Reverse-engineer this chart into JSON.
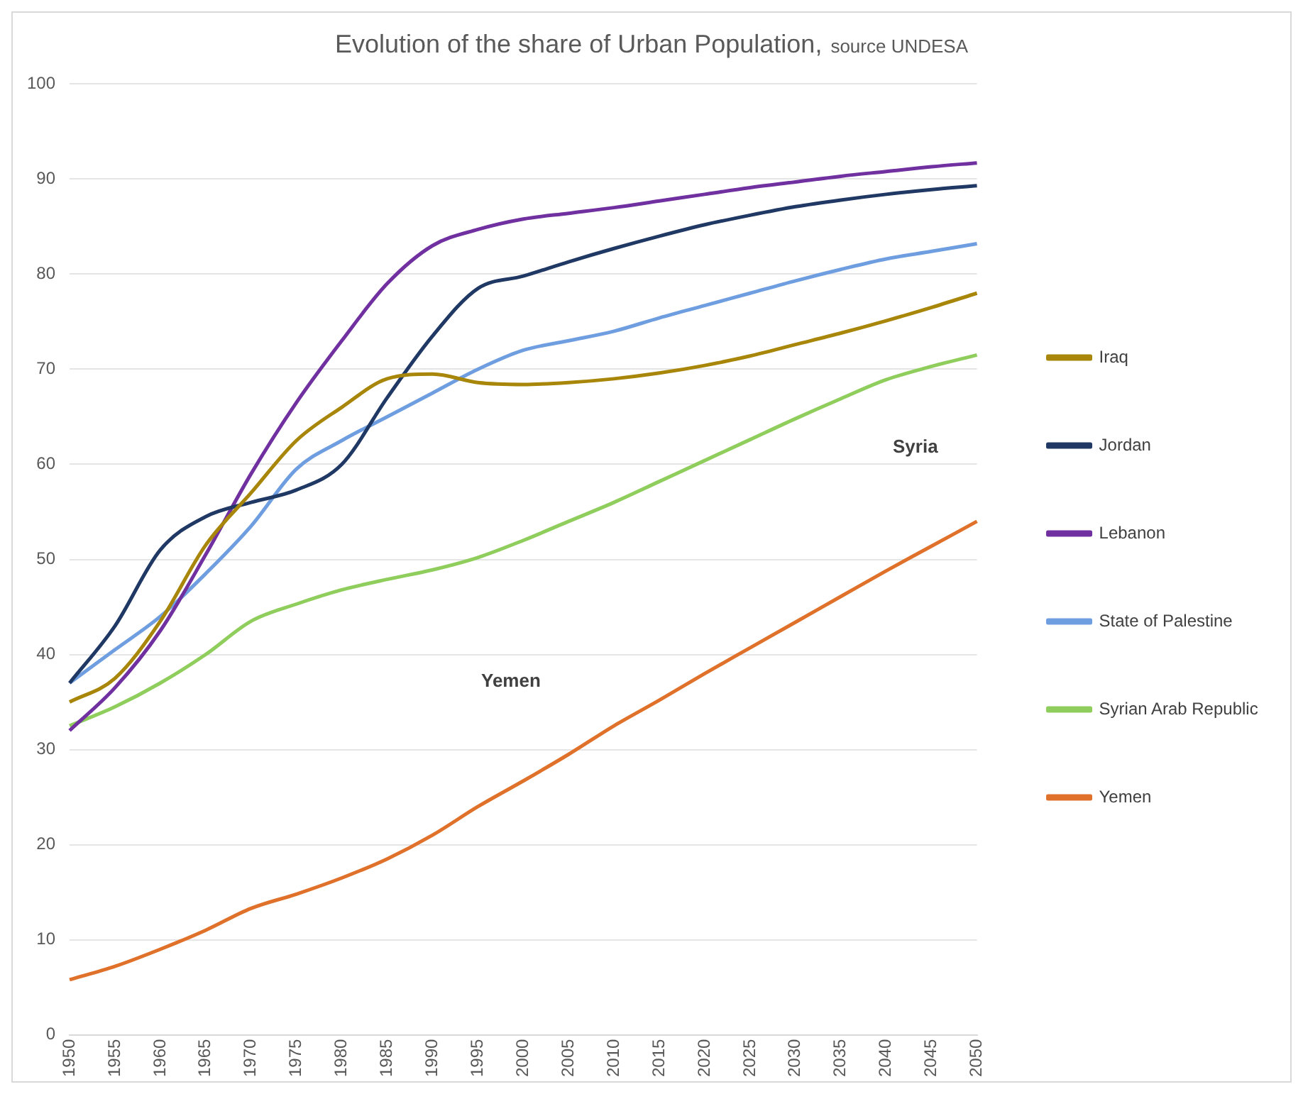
{
  "chart_data": {
    "type": "line",
    "title": "Evolution of the share of Urban Population,",
    "subtitle": "source UNDESA",
    "categories": [
      "1950",
      "1955",
      "1960",
      "1965",
      "1970",
      "1975",
      "1980",
      "1985",
      "1990",
      "1995",
      "2000",
      "2005",
      "2010",
      "2015",
      "2020",
      "2025",
      "2030",
      "2035",
      "2040",
      "2045",
      "2050"
    ],
    "ylim": [
      0,
      100
    ],
    "yticks": [
      0,
      10,
      20,
      30,
      40,
      50,
      60,
      70,
      80,
      90,
      100
    ],
    "grid": "y",
    "legend": "right",
    "marker": "none",
    "line_style": "solid",
    "series": [
      {
        "name": "Iraq",
        "color": "#a8860a",
        "values": [
          35,
          37.5,
          43.5,
          51.5,
          57,
          62.5,
          66,
          69,
          69.5,
          68.6,
          68.4,
          68.6,
          69,
          69.6,
          70.4,
          71.4,
          72.6,
          73.8,
          75.1,
          76.5,
          78
        ]
      },
      {
        "name": "Jordan",
        "color": "#203864",
        "values": [
          37,
          43,
          51,
          54.5,
          56,
          57.3,
          60,
          67,
          73.5,
          78.5,
          79.8,
          81.3,
          82.7,
          84,
          85.2,
          86.2,
          87.1,
          87.8,
          88.4,
          88.9,
          89.3
        ]
      },
      {
        "name": "Lebanon",
        "color": "#7030a0",
        "values": [
          32,
          36.5,
          42.5,
          50.5,
          59,
          66.5,
          73,
          79,
          83,
          84.7,
          85.8,
          86.4,
          87,
          87.7,
          88.4,
          89.1,
          89.7,
          90.3,
          90.8,
          91.3,
          91.7
        ]
      },
      {
        "name": "State of Palestine",
        "color": "#6f9ee0",
        "values": [
          37,
          40.5,
          44,
          48.5,
          53.5,
          59.5,
          62.5,
          65,
          67.5,
          70,
          72,
          73,
          74,
          75.4,
          76.7,
          78,
          79.3,
          80.5,
          81.6,
          82.4,
          83.2
        ]
      },
      {
        "name": "Syrian Arab Republic",
        "color": "#8fce5c",
        "values": [
          32.5,
          34.5,
          37,
          40,
          43.5,
          45.3,
          46.8,
          47.9,
          48.9,
          50.2,
          52,
          54,
          56,
          58.2,
          60.4,
          62.6,
          64.8,
          66.9,
          68.9,
          70.3,
          71.5
        ]
      },
      {
        "name": "Yemen",
        "color": "#e0712a",
        "values": [
          5.8,
          7.2,
          9,
          11,
          13.3,
          14.8,
          16.5,
          18.5,
          21,
          24,
          26.7,
          29.5,
          32.5,
          35.2,
          38,
          40.7,
          43.4,
          46.1,
          48.8,
          51.4,
          54
        ]
      }
    ],
    "annotations": [
      "Syria",
      "Yemen"
    ]
  }
}
